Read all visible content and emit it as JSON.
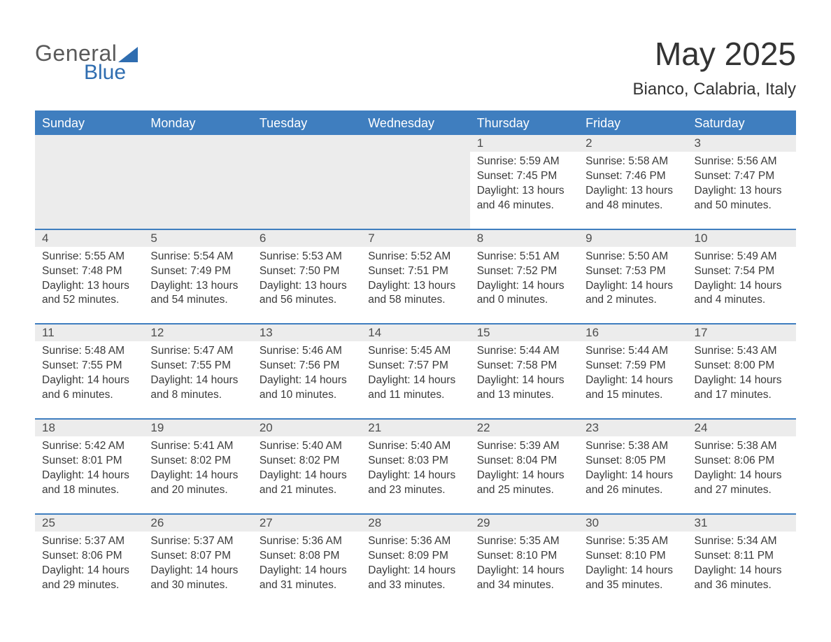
{
  "colors": {
    "header_bg": "#3f7ebf",
    "header_text": "#ffffff",
    "row_rule": "#3f7ebf",
    "daynum_bg": "#ececec",
    "text": "#3a3a3a",
    "logo_blue": "#2f6db0",
    "logo_gray": "#5a5a5a",
    "page_bg": "#ffffff"
  },
  "typography": {
    "title_fontsize": 46,
    "subtitle_fontsize": 24,
    "header_cell_fontsize": 18,
    "daynum_fontsize": 17,
    "body_fontsize": 15.5,
    "logo_fontsize": 32
  },
  "logo": {
    "word1": "General",
    "word2": "Blue"
  },
  "title": {
    "month": "May 2025",
    "location": "Bianco, Calabria, Italy"
  },
  "calendar": {
    "type": "calendar-table",
    "columns": 7,
    "rows": 5,
    "week_headers": [
      "Sunday",
      "Monday",
      "Tuesday",
      "Wednesday",
      "Thursday",
      "Friday",
      "Saturday"
    ],
    "leading_blanks": 4,
    "days": [
      {
        "n": "1",
        "sunrise": "5:59 AM",
        "sunset": "7:45 PM",
        "dl": "13 hours and 46 minutes."
      },
      {
        "n": "2",
        "sunrise": "5:58 AM",
        "sunset": "7:46 PM",
        "dl": "13 hours and 48 minutes."
      },
      {
        "n": "3",
        "sunrise": "5:56 AM",
        "sunset": "7:47 PM",
        "dl": "13 hours and 50 minutes."
      },
      {
        "n": "4",
        "sunrise": "5:55 AM",
        "sunset": "7:48 PM",
        "dl": "13 hours and 52 minutes."
      },
      {
        "n": "5",
        "sunrise": "5:54 AM",
        "sunset": "7:49 PM",
        "dl": "13 hours and 54 minutes."
      },
      {
        "n": "6",
        "sunrise": "5:53 AM",
        "sunset": "7:50 PM",
        "dl": "13 hours and 56 minutes."
      },
      {
        "n": "7",
        "sunrise": "5:52 AM",
        "sunset": "7:51 PM",
        "dl": "13 hours and 58 minutes."
      },
      {
        "n": "8",
        "sunrise": "5:51 AM",
        "sunset": "7:52 PM",
        "dl": "14 hours and 0 minutes."
      },
      {
        "n": "9",
        "sunrise": "5:50 AM",
        "sunset": "7:53 PM",
        "dl": "14 hours and 2 minutes."
      },
      {
        "n": "10",
        "sunrise": "5:49 AM",
        "sunset": "7:54 PM",
        "dl": "14 hours and 4 minutes."
      },
      {
        "n": "11",
        "sunrise": "5:48 AM",
        "sunset": "7:55 PM",
        "dl": "14 hours and 6 minutes."
      },
      {
        "n": "12",
        "sunrise": "5:47 AM",
        "sunset": "7:55 PM",
        "dl": "14 hours and 8 minutes."
      },
      {
        "n": "13",
        "sunrise": "5:46 AM",
        "sunset": "7:56 PM",
        "dl": "14 hours and 10 minutes."
      },
      {
        "n": "14",
        "sunrise": "5:45 AM",
        "sunset": "7:57 PM",
        "dl": "14 hours and 11 minutes."
      },
      {
        "n": "15",
        "sunrise": "5:44 AM",
        "sunset": "7:58 PM",
        "dl": "14 hours and 13 minutes."
      },
      {
        "n": "16",
        "sunrise": "5:44 AM",
        "sunset": "7:59 PM",
        "dl": "14 hours and 15 minutes."
      },
      {
        "n": "17",
        "sunrise": "5:43 AM",
        "sunset": "8:00 PM",
        "dl": "14 hours and 17 minutes."
      },
      {
        "n": "18",
        "sunrise": "5:42 AM",
        "sunset": "8:01 PM",
        "dl": "14 hours and 18 minutes."
      },
      {
        "n": "19",
        "sunrise": "5:41 AM",
        "sunset": "8:02 PM",
        "dl": "14 hours and 20 minutes."
      },
      {
        "n": "20",
        "sunrise": "5:40 AM",
        "sunset": "8:02 PM",
        "dl": "14 hours and 21 minutes."
      },
      {
        "n": "21",
        "sunrise": "5:40 AM",
        "sunset": "8:03 PM",
        "dl": "14 hours and 23 minutes."
      },
      {
        "n": "22",
        "sunrise": "5:39 AM",
        "sunset": "8:04 PM",
        "dl": "14 hours and 25 minutes."
      },
      {
        "n": "23",
        "sunrise": "5:38 AM",
        "sunset": "8:05 PM",
        "dl": "14 hours and 26 minutes."
      },
      {
        "n": "24",
        "sunrise": "5:38 AM",
        "sunset": "8:06 PM",
        "dl": "14 hours and 27 minutes."
      },
      {
        "n": "25",
        "sunrise": "5:37 AM",
        "sunset": "8:06 PM",
        "dl": "14 hours and 29 minutes."
      },
      {
        "n": "26",
        "sunrise": "5:37 AM",
        "sunset": "8:07 PM",
        "dl": "14 hours and 30 minutes."
      },
      {
        "n": "27",
        "sunrise": "5:36 AM",
        "sunset": "8:08 PM",
        "dl": "14 hours and 31 minutes."
      },
      {
        "n": "28",
        "sunrise": "5:36 AM",
        "sunset": "8:09 PM",
        "dl": "14 hours and 33 minutes."
      },
      {
        "n": "29",
        "sunrise": "5:35 AM",
        "sunset": "8:10 PM",
        "dl": "14 hours and 34 minutes."
      },
      {
        "n": "30",
        "sunrise": "5:35 AM",
        "sunset": "8:10 PM",
        "dl": "14 hours and 35 minutes."
      },
      {
        "n": "31",
        "sunrise": "5:34 AM",
        "sunset": "8:11 PM",
        "dl": "14 hours and 36 minutes."
      }
    ],
    "labels": {
      "sunrise": "Sunrise:",
      "sunset": "Sunset:",
      "daylight": "Daylight:"
    }
  }
}
